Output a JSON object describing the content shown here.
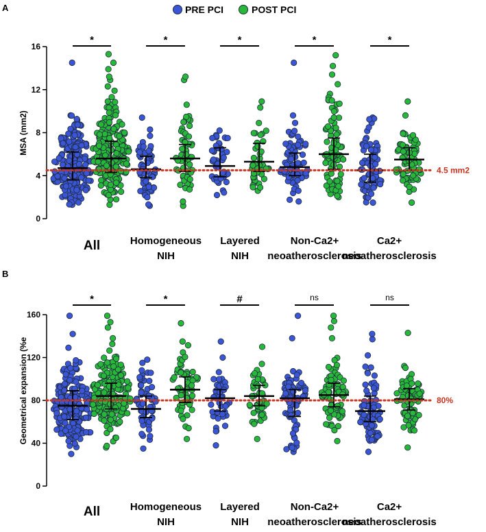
{
  "legend": {
    "items": [
      {
        "label": "PRE PCI",
        "color": "#3a55d6"
      },
      {
        "label": "POST PCI",
        "color": "#27b83a"
      }
    ]
  },
  "colors": {
    "pre": "#3a55d6",
    "post": "#27b83a",
    "reference": "#c8341f",
    "point_edge": "#1f2a3a"
  },
  "categories": [
    {
      "lines": [
        "All"
      ],
      "big": true
    },
    {
      "lines": [
        "Homogeneous",
        "NIH"
      ],
      "big": false
    },
    {
      "lines": [
        "Layered",
        "NIH"
      ],
      "big": false
    },
    {
      "lines": [
        "Non-Ca2+",
        "neoatherosclerosis"
      ],
      "big": false
    },
    {
      "lines": [
        "Ca2+",
        "neoatherosclerosis"
      ],
      "big": false
    }
  ],
  "chart_data": [
    {
      "panel": "A",
      "type": "scatter",
      "title": "",
      "ylabel": "MSA (mm2)",
      "xlabel": "",
      "ylim": [
        0,
        16
      ],
      "yticks": [
        0,
        4,
        8,
        12,
        16
      ],
      "reference_line": {
        "value": 4.5,
        "label": "4.5 mm2"
      },
      "significance": [
        "*",
        "*",
        "*",
        "*",
        "*"
      ],
      "series": [
        {
          "name": "PRE PCI",
          "n": [
            210,
            60,
            45,
            80,
            75
          ],
          "median": [
            4.7,
            4.6,
            4.9,
            4.8,
            4.5
          ],
          "q1": [
            3.6,
            3.8,
            3.9,
            4.0,
            3.4
          ],
          "q3": [
            6.2,
            5.8,
            6.6,
            6.1,
            6.0
          ],
          "min": [
            1.3,
            1.2,
            2.2,
            1.6,
            1.5
          ],
          "max": [
            9.6,
            9.4,
            8.2,
            9.6,
            9.4
          ],
          "outliers": [
            [
              14.5
            ],
            [],
            [],
            [
              14.5
            ],
            []
          ]
        },
        {
          "name": "POST PCI",
          "n": [
            210,
            60,
            45,
            80,
            75
          ],
          "median": [
            5.6,
            5.6,
            5.3,
            6.0,
            5.5
          ],
          "q1": [
            4.3,
            4.4,
            4.4,
            4.6,
            4.5
          ],
          "q3": [
            7.2,
            6.9,
            7.0,
            7.5,
            6.6
          ],
          "min": [
            1.3,
            1.2,
            2.6,
            2.0,
            1.5
          ],
          "max": [
            10.9,
            10.6,
            10.9,
            11.6,
            9.6
          ],
          "outliers": [
            [
              11.3,
              11.9,
              12.3,
              12.9,
              13.2,
              13.9,
              14.5,
              15.3
            ],
            [
              12.9,
              13.2
            ],
            [],
            [
              12.5,
              13.4,
              14.2,
              15.2
            ],
            [
              10.9
            ]
          ]
        }
      ]
    },
    {
      "panel": "B",
      "type": "scatter",
      "title": "",
      "ylabel": "Geometrical expansion (%e",
      "xlabel": "",
      "ylim": [
        0,
        160
      ],
      "yticks": [
        0,
        40,
        80,
        120,
        160
      ],
      "reference_line": {
        "value": 80,
        "label": "80%"
      },
      "significance": [
        "*",
        "*",
        "#",
        "ns",
        "ns"
      ],
      "series": [
        {
          "name": "PRE PCI",
          "n": [
            210,
            60,
            45,
            80,
            75
          ],
          "median": [
            75,
            72,
            82,
            82,
            70
          ],
          "q1": [
            62,
            64,
            70,
            65,
            60
          ],
          "q3": [
            89,
            84,
            90,
            90,
            84
          ],
          "min": [
            30,
            35,
            38,
            32,
            32
          ],
          "max": [
            142,
            118,
            120,
            138,
            122
          ],
          "outliers": [
            [
              159
            ],
            [],
            [
              135
            ],
            [
              159
            ],
            [
              137,
              142
            ]
          ]
        },
        {
          "name": "POST PCI",
          "n": [
            210,
            60,
            45,
            80,
            75
          ],
          "median": [
            84,
            90,
            84,
            85,
            81
          ],
          "q1": [
            72,
            78,
            75,
            74,
            71
          ],
          "q3": [
            96,
            102,
            94,
            96,
            91
          ],
          "min": [
            36,
            44,
            44,
            42,
            36
          ],
          "max": [
            138,
            135,
            130,
            138,
            112
          ],
          "outliers": [
            [
              148,
              153,
              159
            ],
            [
              152
            ],
            [],
            [
              148,
              154,
              159
            ],
            [
              143
            ]
          ]
        }
      ]
    }
  ]
}
